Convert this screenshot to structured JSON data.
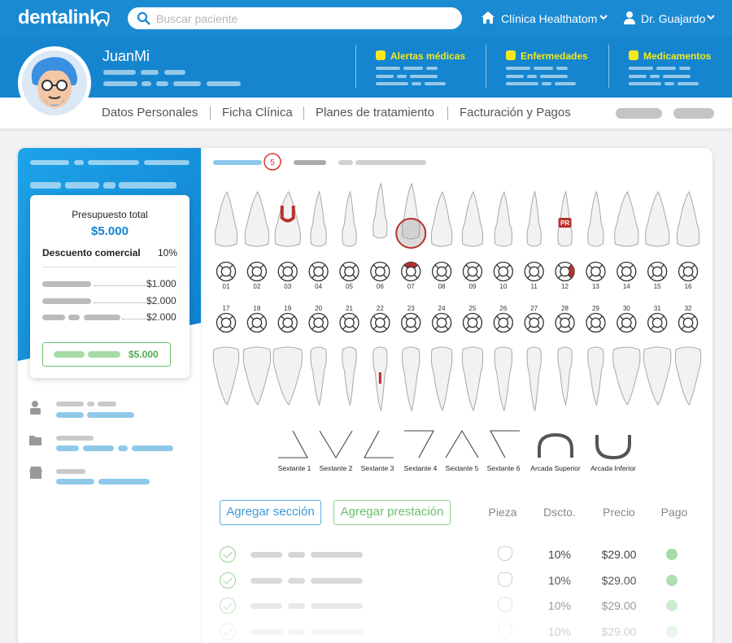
{
  "header": {
    "logo": "dentalink",
    "search_placeholder": "Buscar paciente",
    "clinic": "Clínica Healthatom",
    "user": "Dr. Guajardo"
  },
  "patient": {
    "name": "JuanMi",
    "alerts": [
      "Alertas médicas",
      "Enfermedades",
      "Medicamentos"
    ]
  },
  "tabs": [
    "Datos Personales",
    "Ficha Clínica",
    "Planes de tratamiento",
    "Facturación y Pagos"
  ],
  "budget": {
    "title": "Presupuesto total",
    "total": "$5.000",
    "discount_label": "Descuento comercial",
    "discount": "10%",
    "items": [
      "$1.000",
      "$2.000",
      "$2.000"
    ],
    "button": "$5.000"
  },
  "odontogram": {
    "badge": "5",
    "upper": [
      "01",
      "02",
      "03",
      "04",
      "05",
      "06",
      "07",
      "08",
      "09",
      "10",
      "11",
      "12",
      "13",
      "14",
      "15",
      "16"
    ],
    "lower": [
      "17",
      "18",
      "19",
      "20",
      "21",
      "22",
      "23",
      "24",
      "25",
      "26",
      "27",
      "28",
      "29",
      "30",
      "31",
      "32"
    ],
    "tooth_tag": "PR"
  },
  "sextants": [
    "Sextante 1",
    "Sextante 2",
    "Sextante 3",
    "Sextante 4",
    "Sextante 5",
    "Sextante 6",
    "Arcada Superior",
    "Arcada Inferior"
  ],
  "actions": [
    "Agregar sección",
    "Agregar prestación"
  ],
  "table": {
    "headers": [
      "Pieza",
      "Dscto.",
      "Precio",
      "Pago"
    ],
    "rows": [
      {
        "discount": "10%",
        "price": "$29.00"
      },
      {
        "discount": "10%",
        "price": "$29.00"
      },
      {
        "discount": "10%",
        "price": "$29.00"
      },
      {
        "discount": "10%",
        "price": "$29.00"
      }
    ]
  }
}
